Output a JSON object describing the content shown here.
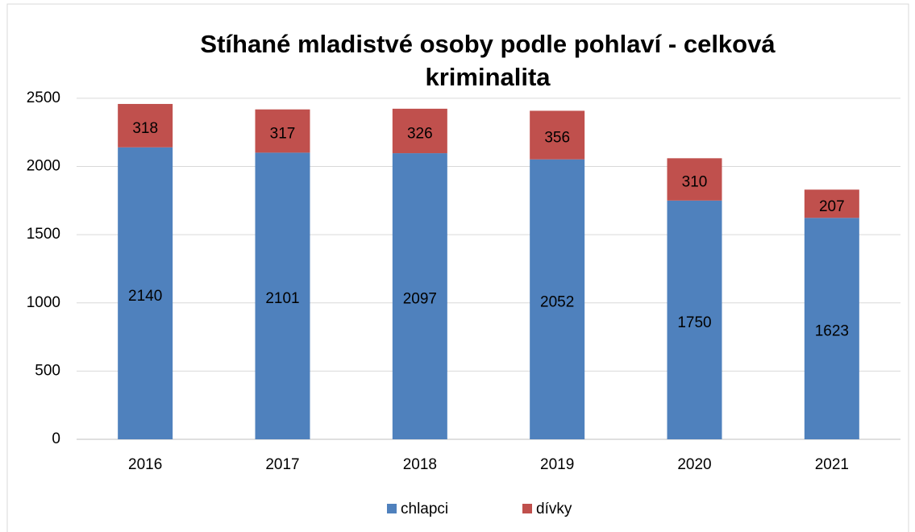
{
  "chart_data": {
    "type": "stacked_bar",
    "title": "Stíhané mladistvé osoby podle pohlaví - celková kriminalita",
    "categories": [
      "2016",
      "2017",
      "2018",
      "2019",
      "2020",
      "2021"
    ],
    "series": [
      {
        "name": "chlapci",
        "color": "#4f81bd",
        "values": [
          2140,
          2101,
          2097,
          2052,
          1750,
          1623
        ]
      },
      {
        "name": "dívky",
        "color": "#c0504d",
        "values": [
          318,
          317,
          326,
          356,
          310,
          207
        ]
      }
    ],
    "ylim": [
      0,
      2700
    ],
    "yticks": [
      0,
      500,
      1000,
      1500,
      2000,
      2500
    ],
    "grid": true,
    "legend": "bottom"
  }
}
